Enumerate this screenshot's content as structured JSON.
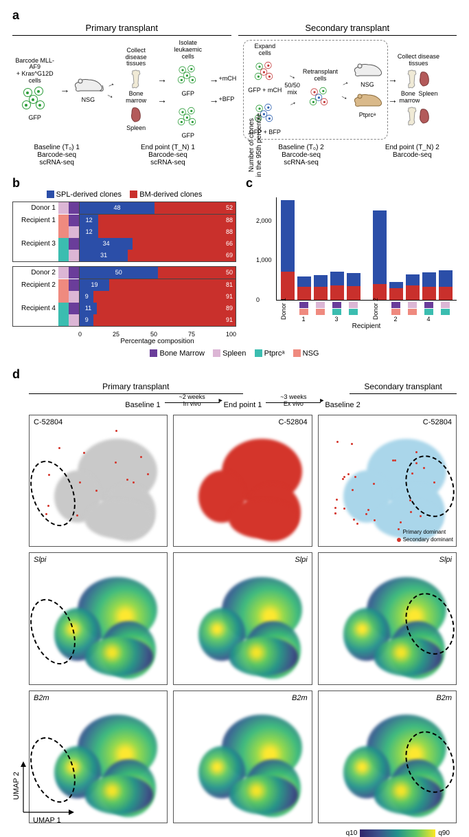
{
  "colors": {
    "spl_clone": "#2b4ea8",
    "bm_clone": "#c9302c",
    "bone_marrow": "#6a3d9a",
    "spleen": "#dcb6d5",
    "ptprc": "#3bbdb0",
    "nsg": "#ef8a7f",
    "primary_dominant": "#aad6ea",
    "secondary_dominant": "#d4352b",
    "gray_bg": "#c9c9c9"
  },
  "panel_a": {
    "label": "a",
    "primary_title": "Primary transplant",
    "secondary_title": "Secondary transplant",
    "steps": {
      "barcode": "Barcode MLL-AF9\n+ Kras^G12D cells",
      "collect1": "Collect disease\ntissues",
      "isolate": "Isolate\nleukaemic cells",
      "expand": "Expand\ncells",
      "retransplant": "Retransplant\ncells",
      "collect2": "Collect disease\ntissues",
      "gfp": "GFP",
      "nsg": "NSG",
      "ptprc": "Ptprcᵃ",
      "bone_marrow": "Bone\nmarrow",
      "spleen": "Spleen",
      "plus_mch": "+mCH",
      "plus_bfp": "+BFP",
      "gfp_mch": "GFP + mCH",
      "gfp_bfp": "GFP + BFP",
      "mix": "50/50\nmix"
    },
    "bottom": {
      "baseline1": "Baseline (T₀) 1\nBarcode-seq\nscRNA-seq",
      "endpoint1": "End point (T_N) 1\nBarcode-seq\nscRNA-seq",
      "baseline2": "Baseline (T₀) 2\nBarcode-seq\nscRNA-seq",
      "endpoint2": "End point (T_N) 2\nBarcode-seq"
    }
  },
  "panel_b": {
    "label": "b",
    "legend": {
      "spl": "SPL-derived clones",
      "bm": "BM-derived clones"
    },
    "donors": [
      {
        "donor_label": "Donor 1",
        "rows": [
          {
            "label": "",
            "sq": [
              "spleen",
              "bone_marrow"
            ],
            "spl": 48,
            "bm": 52
          },
          {
            "label": "Recipient 1",
            "sq": [
              "nsg",
              "bone_marrow"
            ],
            "spl": 12,
            "bm": 88
          },
          {
            "label": "",
            "sq": [
              "nsg",
              "spleen"
            ],
            "spl": 12,
            "bm": 88
          },
          {
            "label": "Recipient 3",
            "sq": [
              "ptprc",
              "bone_marrow"
            ],
            "spl": 34,
            "bm": 66
          },
          {
            "label": "",
            "sq": [
              "ptprc",
              "spleen"
            ],
            "spl": 31,
            "bm": 69
          }
        ]
      },
      {
        "donor_label": "Donor 2",
        "rows": [
          {
            "label": "",
            "sq": [
              "spleen",
              "bone_marrow"
            ],
            "spl": 50,
            "bm": 50
          },
          {
            "label": "Recipient 2",
            "sq": [
              "nsg",
              "bone_marrow"
            ],
            "spl": 19,
            "bm": 81
          },
          {
            "label": "",
            "sq": [
              "nsg",
              "spleen"
            ],
            "spl": 9,
            "bm": 91
          },
          {
            "label": "Recipient 4",
            "sq": [
              "ptprc",
              "bone_marrow"
            ],
            "spl": 11,
            "bm": 89
          },
          {
            "label": "",
            "sq": [
              "ptprc",
              "spleen"
            ],
            "spl": 9,
            "bm": 91
          }
        ]
      }
    ],
    "axis_ticks": [
      "0",
      "25",
      "50",
      "75",
      "100"
    ],
    "axis_title": "Percentage composition"
  },
  "panel_c": {
    "label": "c",
    "ylabel": "Number of clones\nin the 95th percentile",
    "yticks": [
      0,
      1000,
      2000
    ],
    "ymax": 2600,
    "bars": [
      {
        "group": "Donor 1",
        "xlabel": "Donor 1",
        "sq": [],
        "spl": 1800,
        "bm": 700
      },
      {
        "group": "Donor 1",
        "xlabel": "",
        "sq": [
          "bone_marrow",
          "nsg"
        ],
        "spl": 260,
        "bm": 320
      },
      {
        "group": "Donor 1",
        "xlabel": "",
        "sq": [
          "spleen",
          "nsg"
        ],
        "spl": 280,
        "bm": 330
      },
      {
        "group": "Donor 1",
        "xlabel": "",
        "sq": [
          "bone_marrow",
          "ptprc"
        ],
        "spl": 360,
        "bm": 350
      },
      {
        "group": "Donor 1",
        "xlabel": "",
        "sq": [
          "spleen",
          "ptprc"
        ],
        "spl": 330,
        "bm": 340
      },
      {
        "group": "Donor 2",
        "xlabel": "Donor 2",
        "sq": [],
        "spl": 1850,
        "bm": 400
      },
      {
        "group": "Donor 2",
        "xlabel": "",
        "sq": [
          "bone_marrow",
          "nsg"
        ],
        "spl": 150,
        "bm": 290
      },
      {
        "group": "Donor 2",
        "xlabel": "",
        "sq": [
          "spleen",
          "nsg"
        ],
        "spl": 290,
        "bm": 350
      },
      {
        "group": "Donor 2",
        "xlabel": "",
        "sq": [
          "bone_marrow",
          "ptprc"
        ],
        "spl": 360,
        "bm": 320
      },
      {
        "group": "Donor 2",
        "xlabel": "",
        "sq": [
          "spleen",
          "ptprc"
        ],
        "spl": 420,
        "bm": 320
      }
    ],
    "recipients": [
      "",
      "1",
      "",
      "3",
      "",
      "",
      "2",
      "",
      "4",
      ""
    ],
    "recipient_label": "Recipient"
  },
  "legend_bottom": {
    "bone_marrow": "Bone Marrow",
    "spleen": "Spleen",
    "ptprc": "Ptprcᵃ",
    "nsg": "NSG"
  },
  "panel_d": {
    "label": "d",
    "primary_title": "Primary transplant",
    "secondary_title": "Secondary transplant",
    "stages": {
      "b1": "Baseline 1",
      "e1": "End point 1",
      "b2": "Baseline 2"
    },
    "transitions": {
      "t1_top": "~2 weeks",
      "t1_bot": "In vivo",
      "t2_top": "~3 weeks",
      "t2_bot": "Ex vivo"
    },
    "row_labels": [
      "C-52804",
      "Slpi",
      "B2m"
    ],
    "inset_legend": {
      "primary": "Primary dominant",
      "secondary": "Secondary dominant"
    },
    "umap_x": "UMAP 1",
    "umap_y": "UMAP 2",
    "colorbar": {
      "low": "q10",
      "high": "q90"
    },
    "viridis_stops": [
      "#30236b",
      "#3b528b",
      "#21918c",
      "#5ec962",
      "#fde725"
    ]
  }
}
